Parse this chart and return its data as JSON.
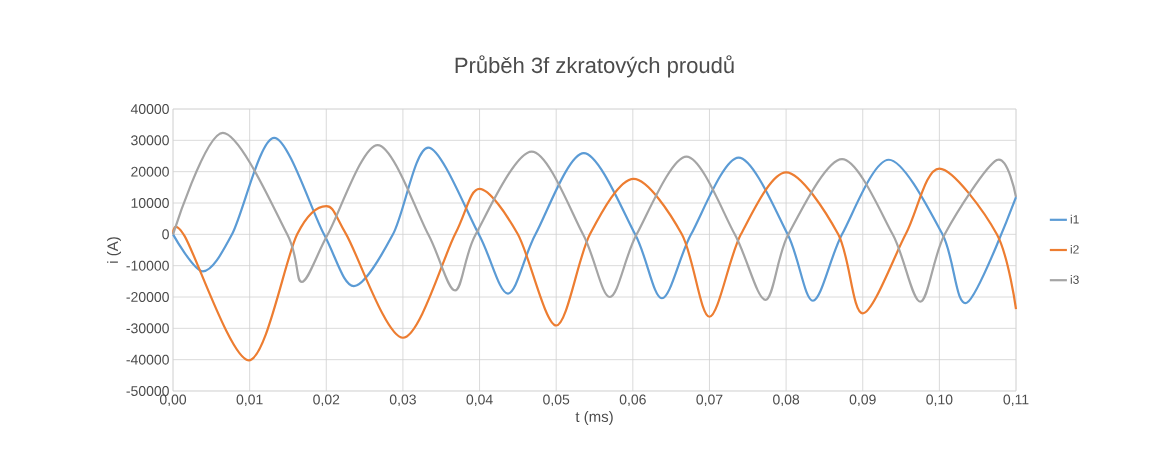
{
  "chart_data": {
    "type": "line",
    "title": "Průběh 3f zkratových proudů",
    "xlabel": "t (ms)",
    "ylabel": "i (A)",
    "xlim": [
      0,
      0.11
    ],
    "ylim": [
      -50000,
      40000
    ],
    "xticks": [
      {
        "value": 0,
        "label": "0,00"
      },
      {
        "value": 0.01,
        "label": "0,01"
      },
      {
        "value": 0.02,
        "label": "0,02"
      },
      {
        "value": 0.03,
        "label": "0,03"
      },
      {
        "value": 0.04,
        "label": "0,04"
      },
      {
        "value": 0.05,
        "label": "0,05"
      },
      {
        "value": 0.06,
        "label": "0,06"
      },
      {
        "value": 0.07,
        "label": "0,07"
      },
      {
        "value": 0.08,
        "label": "0,08"
      },
      {
        "value": 0.09,
        "label": "0,09"
      },
      {
        "value": 0.1,
        "label": "0,10"
      },
      {
        "value": 0.11,
        "label": "0,11"
      }
    ],
    "yticks": [
      -50000,
      -40000,
      -30000,
      -20000,
      -10000,
      0,
      10000,
      20000,
      30000,
      40000
    ],
    "grid": true,
    "legend": "right",
    "series": [
      {
        "name": "i1",
        "color": "#5b9bd5",
        "x": [
          0,
          0.0039,
          0.0077,
          0.0132,
          0.0197,
          0.0236,
          0.0287,
          0.0333,
          0.0399,
          0.0437,
          0.0473,
          0.0536,
          0.0603,
          0.0638,
          0.0676,
          0.0738,
          0.0802,
          0.0835,
          0.0873,
          0.0934,
          0.1004,
          0.1036,
          0.11
        ],
        "values": [
          0,
          -11800,
          0,
          30800,
          0,
          -16500,
          0,
          27700,
          0,
          -18900,
          0,
          25900,
          0,
          -20400,
          0,
          24500,
          0,
          -21200,
          0,
          23800,
          0,
          -21800,
          11900
        ]
      },
      {
        "name": "i2",
        "color": "#ed7d31",
        "x": [
          0,
          0.0015,
          0.0099,
          0.0162,
          0.02,
          0.0226,
          0.03,
          0.0368,
          0.04,
          0.045,
          0.05,
          0.0544,
          0.0601,
          0.0664,
          0.07,
          0.0741,
          0.08,
          0.0868,
          0.09,
          0.0956,
          0.1,
          0.1075,
          0.11
        ],
        "values": [
          0,
          -500,
          -40200,
          0,
          9000,
          0,
          -33000,
          0,
          14500,
          0,
          -29100,
          0,
          17700,
          0,
          -26300,
          0,
          19800,
          0,
          -25200,
          0,
          21000,
          0,
          -23900
        ]
      },
      {
        "name": "i3",
        "color": "#a5a5a5",
        "x": [
          0,
          0.0065,
          0.0149,
          0.0168,
          0.0202,
          0.0267,
          0.0333,
          0.0368,
          0.0395,
          0.0468,
          0.0535,
          0.057,
          0.0605,
          0.067,
          0.0733,
          0.0773,
          0.0803,
          0.0873,
          0.0939,
          0.0975,
          0.1007,
          0.1075,
          0.11
        ],
        "values": [
          0,
          32400,
          0,
          -15200,
          0,
          28500,
          0,
          -17900,
          0,
          26400,
          0,
          -20000,
          0,
          24800,
          0,
          -20900,
          0,
          24000,
          0,
          -21500,
          0,
          23700,
          11900
        ]
      }
    ]
  }
}
